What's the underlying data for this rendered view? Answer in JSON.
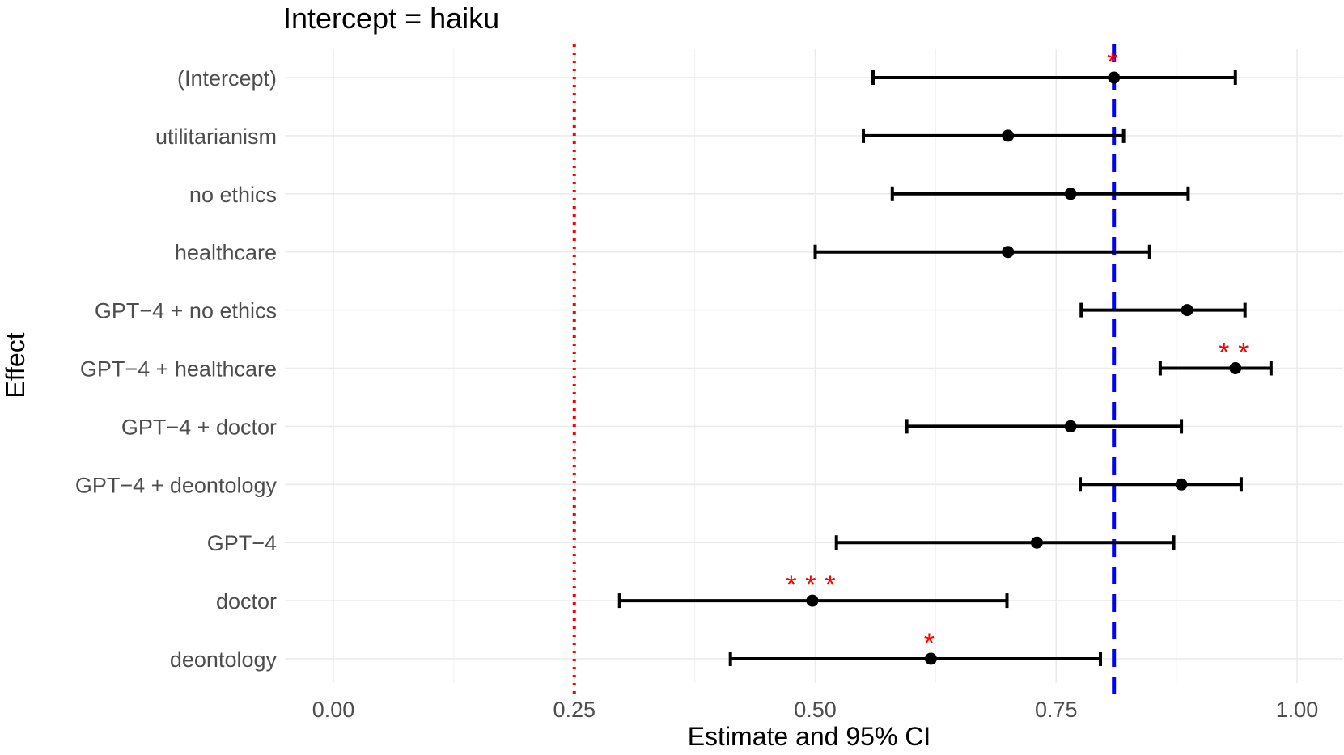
{
  "chart_data": {
    "type": "scatter",
    "title": "Intercept =  haiku",
    "xlabel": "Estimate and 95% CI",
    "ylabel": "Effect",
    "xlim": [
      -0.025,
      1.025
    ],
    "x_ticks": [
      "0.00",
      "0.25",
      "0.50",
      "0.75",
      "1.00"
    ],
    "x_tick_values": [
      0,
      0.25,
      0.5,
      0.75,
      1.0
    ],
    "grid": true,
    "reference_lines": [
      {
        "value": 0.25,
        "style": "dotted",
        "color": "#ff0000"
      },
      {
        "value": 0.81,
        "style": "dashed",
        "color": "#0000ff"
      }
    ],
    "colors": {
      "points": "#000000",
      "significance": "#ff0000"
    },
    "effects": [
      {
        "label": "(Intercept)",
        "estimate": 0.81,
        "lower": 0.56,
        "upper": 0.936,
        "significance": "*"
      },
      {
        "label": "utilitarianism",
        "estimate": 0.7,
        "lower": 0.55,
        "upper": 0.82,
        "significance": ""
      },
      {
        "label": "no ethics",
        "estimate": 0.765,
        "lower": 0.58,
        "upper": 0.887,
        "significance": ""
      },
      {
        "label": "healthcare",
        "estimate": 0.7,
        "lower": 0.5,
        "upper": 0.847,
        "significance": ""
      },
      {
        "label": "GPT−4 +  no ethics",
        "estimate": 0.886,
        "lower": 0.776,
        "upper": 0.946,
        "significance": ""
      },
      {
        "label": "GPT−4 +  healthcare",
        "estimate": 0.936,
        "lower": 0.858,
        "upper": 0.973,
        "significance": "**"
      },
      {
        "label": "GPT−4 +  doctor",
        "estimate": 0.765,
        "lower": 0.595,
        "upper": 0.88,
        "significance": ""
      },
      {
        "label": "GPT−4 +  deontology",
        "estimate": 0.88,
        "lower": 0.775,
        "upper": 0.942,
        "significance": ""
      },
      {
        "label": "GPT−4",
        "estimate": 0.73,
        "lower": 0.522,
        "upper": 0.872,
        "significance": ""
      },
      {
        "label": "doctor",
        "estimate": 0.497,
        "lower": 0.297,
        "upper": 0.699,
        "significance": "***"
      },
      {
        "label": "deontology",
        "estimate": 0.62,
        "lower": 0.412,
        "upper": 0.796,
        "significance": "*"
      }
    ]
  }
}
